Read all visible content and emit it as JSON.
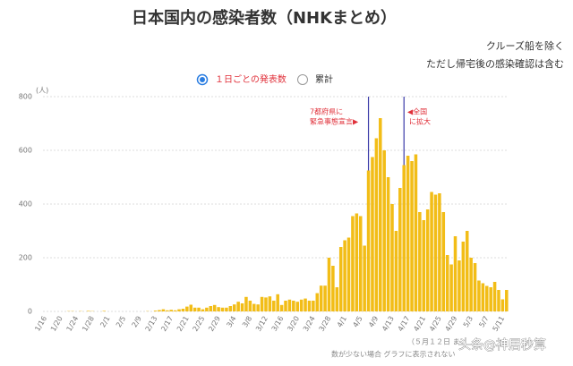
{
  "chart_data": {
    "type": "bar",
    "title": "日本国内の感染者数（NHKまとめ）",
    "notes": [
      "クルーズ船を除く",
      "ただし帰宅後の感染確認は含む"
    ],
    "legend_items": [
      "１日ごとの発表数",
      "累計"
    ],
    "y_unit": "(人)",
    "footnotes": [
      "（５月１２日 ま",
      "数が少ない場合 グラフに表示されない"
    ],
    "watermark": "头条@神居秒算",
    "annotations": [
      [
        "7都府県に",
        "緊急事態宣言▶"
      ],
      [
        "◀全国",
        "に拡大"
      ]
    ],
    "color": "#f2bd17",
    "grid": true,
    "ylim": [
      0,
      800
    ],
    "yticks": [
      0,
      200,
      400,
      600,
      800
    ],
    "categories": [
      "1/16",
      null,
      null,
      null,
      "1/20",
      null,
      null,
      null,
      "1/24",
      null,
      null,
      null,
      "1/28",
      null,
      null,
      null,
      "2/1",
      null,
      null,
      null,
      "2/5",
      null,
      null,
      null,
      "2/9",
      null,
      null,
      null,
      "2/13",
      null,
      null,
      null,
      "2/17",
      null,
      null,
      null,
      "2/21",
      null,
      null,
      null,
      "2/25",
      null,
      null,
      null,
      "2/29",
      null,
      null,
      null,
      "3/4",
      null,
      null,
      null,
      "3/8",
      null,
      null,
      null,
      "3/12",
      null,
      null,
      null,
      "3/16",
      null,
      null,
      null,
      "3/20",
      null,
      null,
      null,
      "3/24",
      null,
      null,
      null,
      "3/28",
      null,
      null,
      null,
      "4/1",
      null,
      null,
      null,
      "4/5",
      null,
      null,
      null,
      "4/9",
      null,
      null,
      null,
      "4/13",
      null,
      null,
      null,
      "4/17",
      null,
      null,
      null,
      "4/21",
      null,
      null,
      null,
      "4/25",
      null,
      null,
      null,
      "4/29",
      null,
      null,
      null,
      "5/3",
      null,
      null,
      null,
      "5/7",
      null,
      null,
      null,
      "5/11",
      null
    ],
    "values": [
      0,
      0,
      0,
      0,
      0,
      0,
      1,
      1,
      0,
      1,
      0,
      2,
      1,
      0,
      0,
      2,
      0,
      0,
      0,
      0,
      0,
      0,
      0,
      0,
      0,
      0,
      1,
      0,
      3,
      5,
      8,
      4,
      6,
      4,
      8,
      10,
      18,
      25,
      14,
      14,
      8,
      14,
      20,
      24,
      16,
      14,
      14,
      20,
      26,
      36,
      30,
      54,
      40,
      28,
      26,
      54,
      52,
      56,
      40,
      64,
      24,
      40,
      44,
      40,
      36,
      44,
      48,
      40,
      40,
      68,
      96,
      96,
      200,
      170,
      90,
      240,
      265,
      275,
      355,
      365,
      355,
      245,
      525,
      575,
      645,
      720,
      600,
      500,
      400,
      300,
      460,
      545,
      580,
      560,
      585,
      370,
      340,
      380,
      445,
      435,
      440,
      370,
      210,
      175,
      280,
      190,
      260,
      300,
      200,
      180,
      115,
      105,
      95,
      90,
      110,
      80,
      45,
      80
    ]
  }
}
